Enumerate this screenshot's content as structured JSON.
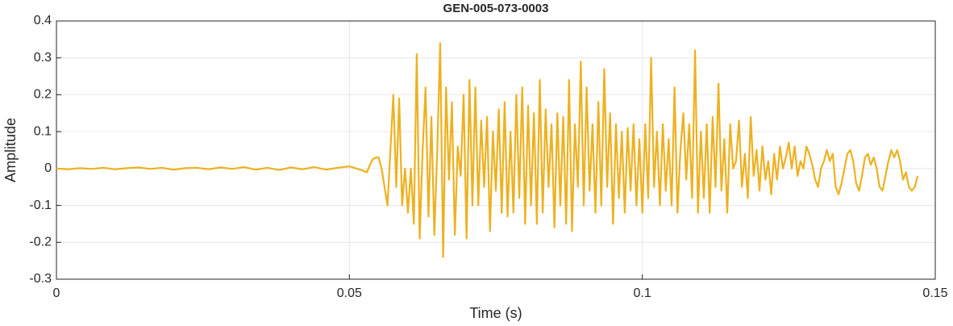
{
  "chart_data": {
    "type": "line",
    "title": "GEN-005-073-0003",
    "x_label": "Time (s)",
    "y_label": "Amplitude",
    "color": "#EDB120",
    "grid": true,
    "xlim": [
      0,
      0.15
    ],
    "xticks": [
      0,
      0.05,
      0.1,
      0.15
    ],
    "ylim": [
      -0.3,
      0.4
    ],
    "yticks": [
      -0.3,
      -0.2,
      -0.1,
      0,
      0.1,
      0.2,
      0.3,
      0.4
    ],
    "x": [
      0,
      0.002,
      0.004,
      0.006,
      0.008,
      0.01,
      0.012,
      0.014,
      0.016,
      0.018,
      0.02,
      0.022,
      0.024,
      0.026,
      0.028,
      0.03,
      0.032,
      0.034,
      0.036,
      0.038,
      0.04,
      0.042,
      0.044,
      0.046,
      0.048,
      0.05,
      0.052,
      0.053,
      0.0535,
      0.054,
      0.0545,
      0.055,
      0.0555,
      0.056,
      0.0565,
      0.057,
      0.0575,
      0.058,
      0.0585,
      0.059,
      0.0595,
      0.06,
      0.0605,
      0.061,
      0.0615,
      0.062,
      0.0625,
      0.063,
      0.0635,
      0.064,
      0.0645,
      0.065,
      0.0655,
      0.066,
      0.0665,
      0.067,
      0.0675,
      0.068,
      0.0685,
      0.069,
      0.0695,
      0.07,
      0.0705,
      0.071,
      0.0715,
      0.072,
      0.0725,
      0.073,
      0.0735,
      0.074,
      0.0745,
      0.075,
      0.0755,
      0.076,
      0.0765,
      0.077,
      0.0775,
      0.078,
      0.0785,
      0.079,
      0.0795,
      0.08,
      0.0805,
      0.081,
      0.0815,
      0.082,
      0.0825,
      0.083,
      0.0835,
      0.084,
      0.0845,
      0.085,
      0.0855,
      0.086,
      0.0865,
      0.087,
      0.0875,
      0.088,
      0.0885,
      0.089,
      0.0895,
      0.09,
      0.0905,
      0.091,
      0.0915,
      0.092,
      0.0925,
      0.093,
      0.0935,
      0.094,
      0.0945,
      0.095,
      0.0955,
      0.096,
      0.0965,
      0.097,
      0.0975,
      0.098,
      0.0985,
      0.099,
      0.0995,
      0.1,
      0.1005,
      0.101,
      0.1015,
      0.102,
      0.1025,
      0.103,
      0.1035,
      0.104,
      0.1045,
      0.105,
      0.1055,
      0.106,
      0.1065,
      0.107,
      0.1075,
      0.108,
      0.1085,
      0.109,
      0.1095,
      0.11,
      0.1105,
      0.111,
      0.1115,
      0.112,
      0.1125,
      0.113,
      0.1135,
      0.114,
      0.1145,
      0.115,
      0.1155,
      0.116,
      0.1165,
      0.117,
      0.1175,
      0.118,
      0.1185,
      0.119,
      0.1195,
      0.12,
      0.1205,
      0.121,
      0.1215,
      0.122,
      0.1225,
      0.123,
      0.1235,
      0.124,
      0.1245,
      0.125,
      0.1255,
      0.126,
      0.1265,
      0.127,
      0.1275,
      0.128,
      0.1285,
      0.129,
      0.1295,
      0.13,
      0.1305,
      0.131,
      0.1315,
      0.132,
      0.1325,
      0.133,
      0.1335,
      0.134,
      0.1345,
      0.135,
      0.1355,
      0.136,
      0.1365,
      0.137,
      0.1375,
      0.138,
      0.1385,
      0.139,
      0.1395,
      0.14,
      0.1405,
      0.141,
      0.1415,
      0.142,
      0.1425,
      0.143,
      0.1435,
      0.144,
      0.1445,
      0.145,
      0.1455,
      0.146,
      0.1465,
      0.147
    ],
    "values": [
      0,
      -0.002,
      0.001,
      -0.001,
      0.002,
      -0.002,
      0.001,
      0.003,
      -0.001,
      0.002,
      -0.003,
      0.001,
      0.002,
      -0.002,
      0.003,
      -0.001,
      0.004,
      -0.003,
      0.002,
      -0.004,
      0.003,
      -0.002,
      0.004,
      -0.003,
      0.002,
      0.006,
      -0.004,
      -0.01,
      0.01,
      0.025,
      0.03,
      0.03,
      0.0,
      -0.05,
      -0.1,
      0.05,
      0.2,
      -0.05,
      0.19,
      -0.1,
      0.0,
      -0.12,
      0.0,
      -0.15,
      0.31,
      -0.19,
      0.05,
      0.22,
      -0.13,
      0.14,
      -0.18,
      0.05,
      0.34,
      -0.24,
      0.22,
      -0.03,
      0.18,
      -0.18,
      0.06,
      -0.02,
      0.2,
      -0.19,
      0.24,
      -0.1,
      0.22,
      -0.1,
      0.13,
      -0.05,
      0.14,
      -0.17,
      0.1,
      -0.06,
      0.16,
      -0.12,
      0.18,
      -0.13,
      0.1,
      -0.12,
      0.2,
      -0.08,
      0.22,
      -0.15,
      0.17,
      -0.1,
      0.15,
      -0.15,
      0.24,
      -0.12,
      0.16,
      -0.05,
      0.12,
      -0.16,
      0.15,
      -0.1,
      0.14,
      -0.15,
      0.24,
      -0.17,
      0.12,
      -0.05,
      0.29,
      -0.1,
      0.22,
      -0.06,
      0.12,
      -0.12,
      0.18,
      -0.1,
      0.27,
      -0.05,
      0.15,
      -0.15,
      0.12,
      -0.08,
      0.1,
      -0.12,
      0.11,
      -0.06,
      0.12,
      -0.1,
      0.08,
      -0.12,
      0.12,
      -0.08,
      0.3,
      -0.05,
      0.1,
      -0.1,
      0.12,
      -0.06,
      0.08,
      -0.1,
      0.22,
      -0.12,
      0.05,
      0.15,
      -0.03,
      0.12,
      -0.08,
      0.32,
      -0.12,
      0.1,
      -0.08,
      0.12,
      -0.12,
      0.14,
      -0.05,
      0.23,
      -0.06,
      0.08,
      -0.12,
      0.12,
      0.0,
      0.02,
      0.13,
      -0.05,
      0.04,
      -0.08,
      0.14,
      -0.02,
      0.05,
      -0.06,
      0.06,
      -0.03,
      0.02,
      -0.07,
      0.04,
      -0.03,
      0.06,
      0.0,
      0.03,
      0.07,
      0.0,
      0.06,
      -0.02,
      0.02,
      0.0,
      0.06,
      0.04,
      0.01,
      -0.03,
      -0.05,
      0.0,
      0.02,
      0.05,
      0.02,
      0.04,
      -0.05,
      -0.07,
      -0.04,
      0.0,
      0.04,
      0.05,
      0.02,
      -0.04,
      -0.06,
      -0.02,
      0.03,
      0.04,
      0.01,
      0.03,
      0.0,
      -0.05,
      -0.06,
      -0.02,
      0.02,
      0.05,
      0.03,
      0.05,
      0.02,
      -0.03,
      -0.01,
      -0.05,
      -0.06,
      -0.05,
      -0.02
    ]
  }
}
